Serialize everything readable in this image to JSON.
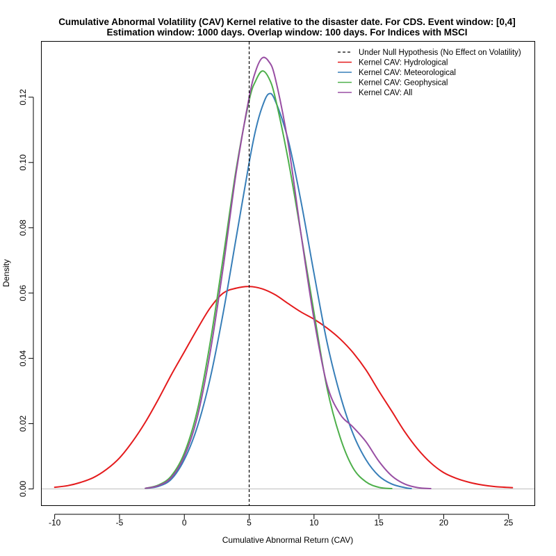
{
  "chart_data": {
    "type": "line",
    "title": "Cumulative Abnormal Volatility (CAV) Kernel relative to the disaster date. For CDS. Event window: [0,4]",
    "subtitle": "Estimation window: 1000 days. Overlap window: 100 days. For Indices with MSCI",
    "xlabel": "Cumulative Abnormal Return (CAV)",
    "ylabel": "Density",
    "xlim": [
      -11,
      27
    ],
    "ylim": [
      -0.005,
      0.137
    ],
    "xticks": [
      -10,
      -5,
      0,
      5,
      10,
      15,
      20,
      25
    ],
    "xtick_labels": [
      "-10",
      "-5",
      "0",
      "5",
      "10",
      "15",
      "20",
      "25"
    ],
    "yticks": [
      0.0,
      0.02,
      0.04,
      0.06,
      0.08,
      0.1,
      0.12
    ],
    "ytick_labels": [
      "0.00",
      "0.02",
      "0.04",
      "0.06",
      "0.08",
      "0.10",
      "0.12"
    ],
    "grid": false,
    "legend_position": "top-right",
    "null_line": {
      "name": "Under Null Hypothesis (No Effect on Volatility)",
      "x": 5,
      "color": "#000000",
      "style": "dashed"
    },
    "baseline": {
      "y": 0,
      "color": "#bebebe"
    },
    "series": [
      {
        "name": "Kernel CAV: Hydrological",
        "color": "#E41A1C",
        "x": [
          -10,
          -9,
          -8,
          -7,
          -6,
          -5,
          -4,
          -3,
          -2,
          -1,
          0,
          1,
          2,
          3,
          4,
          5,
          6,
          7,
          8,
          9,
          10,
          11,
          12,
          13,
          14,
          15,
          16,
          17,
          18,
          19,
          20,
          21,
          22,
          23,
          24,
          25.3
        ],
        "y": [
          0.0005,
          0.001,
          0.002,
          0.0035,
          0.006,
          0.0095,
          0.0145,
          0.0205,
          0.0275,
          0.035,
          0.042,
          0.049,
          0.0555,
          0.06,
          0.0615,
          0.062,
          0.0613,
          0.0595,
          0.0568,
          0.0542,
          0.052,
          0.0493,
          0.046,
          0.0418,
          0.0365,
          0.03,
          0.0238,
          0.0175,
          0.0122,
          0.008,
          0.005,
          0.0032,
          0.002,
          0.0012,
          0.0007,
          0.0004
        ]
      },
      {
        "name": "Kernel CAV: Meteorological",
        "color": "#377EB8",
        "x": [
          -3,
          -2,
          -1,
          0,
          1,
          2,
          3,
          4,
          5,
          5.5,
          6,
          6.5,
          7,
          8,
          9,
          10,
          11,
          12,
          13,
          14,
          15,
          16,
          17,
          17.5
        ],
        "y": [
          0.0002,
          0.0008,
          0.003,
          0.009,
          0.019,
          0.034,
          0.054,
          0.077,
          0.1,
          0.11,
          0.117,
          0.121,
          0.119,
          0.107,
          0.088,
          0.066,
          0.045,
          0.029,
          0.017,
          0.009,
          0.004,
          0.0015,
          0.0004,
          0.0001
        ]
      },
      {
        "name": "Kernel CAV: Geophysical",
        "color": "#4DAF4A",
        "x": [
          -3,
          -2,
          -1,
          0,
          1,
          2,
          3,
          4,
          5,
          5.5,
          6,
          6.5,
          7,
          8,
          9,
          10,
          11,
          12,
          13,
          14,
          15,
          16
        ],
        "y": [
          0.0002,
          0.0012,
          0.004,
          0.011,
          0.024,
          0.045,
          0.071,
          0.098,
          0.119,
          0.125,
          0.128,
          0.126,
          0.12,
          0.101,
          0.078,
          0.054,
          0.031,
          0.016,
          0.0065,
          0.0022,
          0.0005,
          0.0001
        ]
      },
      {
        "name": "Kernel CAV: All",
        "color": "#984EA3",
        "x": [
          -3,
          -2,
          -1,
          0,
          1,
          2,
          3,
          4,
          5,
          5.5,
          6,
          6.5,
          7,
          8,
          9,
          10,
          11,
          12,
          13,
          14,
          15,
          16,
          17,
          18,
          19
        ],
        "y": [
          0.0002,
          0.001,
          0.0035,
          0.01,
          0.022,
          0.042,
          0.068,
          0.097,
          0.12,
          0.128,
          0.132,
          0.131,
          0.126,
          0.106,
          0.078,
          0.052,
          0.032,
          0.023,
          0.019,
          0.0145,
          0.0085,
          0.004,
          0.0015,
          0.0004,
          0.0001
        ]
      }
    ]
  }
}
